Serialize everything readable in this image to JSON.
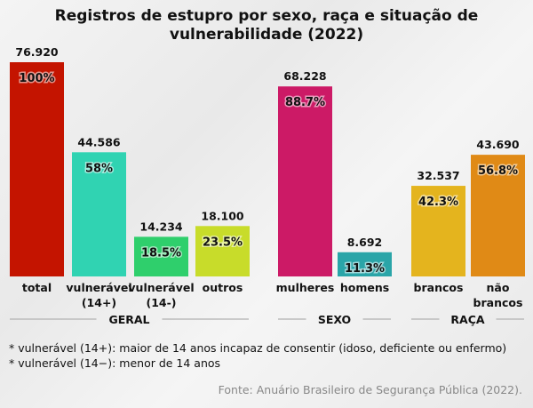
{
  "chart_data": {
    "type": "bar",
    "title": "Registros de estupro por sexo, raça e situação de vulnerabilidade (2022)",
    "categories": [
      "total",
      "vulnerável (14+)",
      "vulnerável (14-)",
      "outros",
      "mulheres",
      "homens",
      "brancos",
      "não brancos"
    ],
    "values": [
      76920,
      44586,
      14234,
      18100,
      68228,
      8692,
      32537,
      43690
    ],
    "value_labels": [
      "76.920",
      "44.586",
      "14.234",
      "18.100",
      "68.228",
      "8.692",
      "32.537",
      "43.690"
    ],
    "percent_labels": [
      "100%",
      "58%",
      "18.5%",
      "23.5%",
      "88.7%",
      "11.3%",
      "42.3%",
      "56.8%"
    ],
    "colors": [
      "#c41400",
      "#30d3b2",
      "#2fcf6c",
      "#c8dc2a",
      "#cc1a66",
      "#2aa5a8",
      "#e4b41e",
      "#e08a16"
    ],
    "groups": [
      {
        "label": "GERAL",
        "members": [
          "total",
          "vulnerável (14+)",
          "vulnerável (14-)",
          "outros"
        ]
      },
      {
        "label": "SEXO",
        "members": [
          "mulheres",
          "homens"
        ]
      },
      {
        "label": "RAÇA",
        "members": [
          "brancos",
          "não brancos"
        ]
      }
    ],
    "xlabel": "",
    "ylabel": "",
    "ylim": [
      0,
      76920
    ],
    "grid": false,
    "legend": "none"
  },
  "footnotes": [
    "* vulnerável (14+): maior de 14 anos incapaz de consentir (idoso, deficiente ou enfermo)",
    "* vulnerável (14−): menor de 14 anos"
  ],
  "source": "Fonte: Anuário Brasileiro de Segurança Pública (2022)."
}
